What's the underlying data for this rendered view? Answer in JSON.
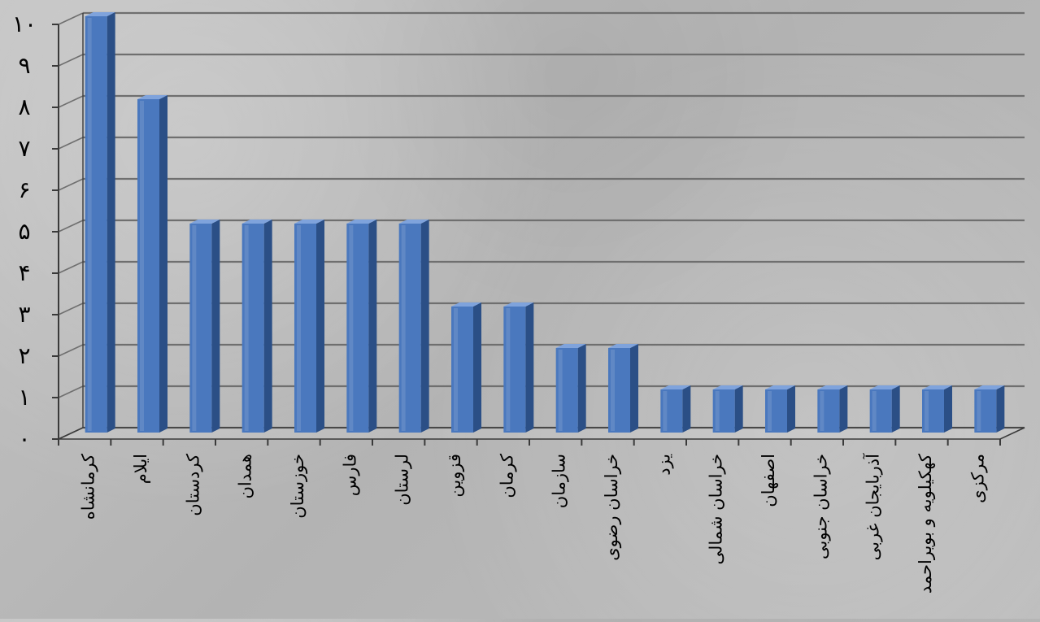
{
  "chart_data": {
    "type": "bar",
    "title": "",
    "xlabel": "",
    "ylabel": "",
    "categories": [
      "کرمانشاه",
      "ایلام",
      "کردستان",
      "همدان",
      "خوزستان",
      "فارس",
      "لرستان",
      "قزوین",
      "کرمان",
      "سازمان",
      "خراسان رضوی",
      "یزد",
      "خراسان شمالی",
      "اصفهان",
      "خراسان جنوبی",
      "آذربایجان غربی",
      "کهکیلویه و بویراحمد",
      "مرکزی"
    ],
    "values": [
      10,
      8,
      5,
      5,
      5,
      5,
      5,
      3,
      3,
      2,
      2,
      1,
      1,
      1,
      1,
      1,
      1,
      1
    ],
    "ylim": [
      0,
      10
    ],
    "yticks": [
      "۰",
      "۱",
      "۲",
      "۳",
      "۴",
      "۵",
      "۶",
      "۷",
      "۸",
      "۹",
      "۱۰"
    ],
    "grid": true,
    "legend": "none",
    "style": "3d-column",
    "colors": {
      "bar_front": "#4a78be",
      "bar_side": "#2b4f86",
      "bar_top": "#7fa3dc",
      "grid": "#6f6f6f",
      "axis": "#3a3a3a"
    }
  }
}
